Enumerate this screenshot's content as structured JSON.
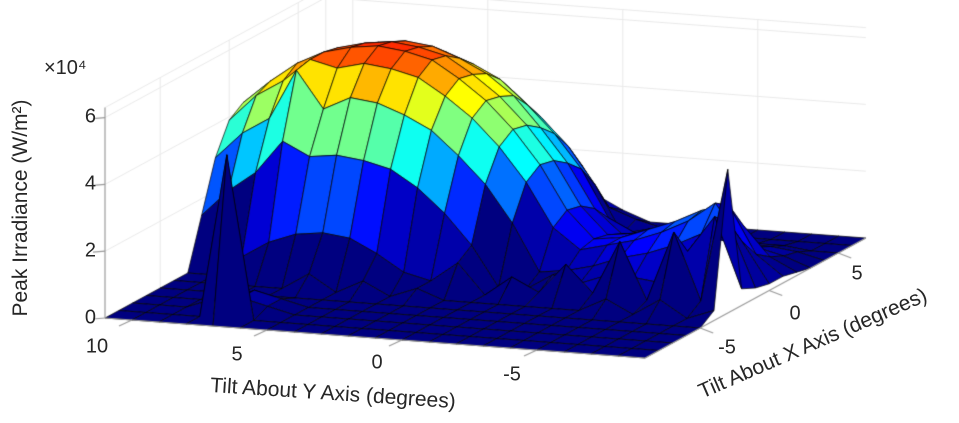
{
  "figure": {
    "kind": "matlab-3d-surface-plot",
    "background": "#ffffff"
  },
  "chart_data": {
    "type": "surface",
    "title": "",
    "xlabel": "Tilt About Y Axis (degrees)",
    "ylabel": "Tilt About X Axis (degrees)",
    "zlabel": "Peak Irradiance (W/m²)",
    "z_multiplier": "×10⁴",
    "z_unit_scale": 10000,
    "colormap": "jet",
    "clim": [
      0,
      7.2
    ],
    "zlim": [
      0,
      6.3
    ],
    "grid": true,
    "x_ticks": {
      "values": [
        10,
        5,
        0,
        -5
      ],
      "labels": [
        "10",
        "5",
        "0",
        "-5"
      ]
    },
    "y_ticks": {
      "values": [
        -5,
        0,
        5
      ],
      "labels": [
        "-5",
        "0",
        "5"
      ]
    },
    "z_ticks": {
      "values": [
        0,
        2,
        4,
        6
      ],
      "labels": [
        "0",
        "2",
        "4",
        "6"
      ]
    },
    "x": [
      -9,
      -8,
      -7,
      -6,
      -5,
      -4,
      -3,
      -2,
      -1,
      0,
      1,
      2,
      3,
      4,
      5,
      6,
      7,
      8,
      9,
      10,
      11
    ],
    "y": [
      -9,
      -8,
      -7,
      -6,
      -5,
      -4,
      -3,
      -2,
      -1,
      0,
      1,
      2,
      3,
      4,
      5,
      6,
      7
    ],
    "z_grid": [
      [
        0,
        0,
        0,
        0,
        0,
        0,
        0,
        0,
        0,
        0,
        0,
        0,
        0,
        0,
        0,
        0,
        0,
        0,
        0,
        0,
        0
      ],
      [
        0,
        0,
        0,
        0,
        0,
        0,
        0,
        0,
        0,
        0,
        0,
        0,
        0,
        0,
        0,
        0,
        4.9,
        0,
        0,
        0,
        0
      ],
      [
        0,
        0,
        0,
        0,
        0,
        0,
        0,
        0,
        0,
        0,
        0,
        0,
        0,
        0,
        0,
        0.2,
        0.4,
        0.3,
        0,
        0,
        0
      ],
      [
        0,
        0,
        0,
        0,
        0,
        0,
        0,
        0,
        0,
        0,
        0,
        0,
        0,
        0,
        0,
        0.2,
        0.4,
        0,
        0,
        0,
        0
      ],
      [
        0,
        0,
        0,
        0,
        0,
        0,
        0,
        0,
        0,
        0,
        0,
        0,
        0,
        0,
        0,
        0,
        0,
        0,
        0,
        0,
        0
      ],
      [
        0.3,
        0,
        0.5,
        0,
        0.4,
        0,
        0,
        0,
        0,
        0,
        0,
        0.3,
        0,
        0.4,
        0,
        0.5,
        0,
        0,
        0,
        0,
        0
      ],
      [
        4.3,
        0.3,
        2.3,
        0.2,
        1.9,
        0.3,
        1.1,
        0.2,
        0.6,
        0,
        0.9,
        0.3,
        0.5,
        1.0,
        1.4,
        1.5,
        1.4,
        1.1,
        0.6,
        0,
        0
      ],
      [
        0.5,
        2.6,
        1.5,
        0.5,
        0.6,
        0.6,
        0.3,
        0.5,
        0,
        0,
        1.2,
        2.1,
        2.8,
        3.3,
        3.5,
        3.6,
        3.5,
        3.9,
        2.9,
        2.3,
        1.5
      ],
      [
        0.3,
        2.2,
        1.8,
        1.4,
        1.1,
        0.9,
        0.6,
        0.4,
        0.3,
        1.7,
        2.8,
        3.6,
        4.3,
        4.7,
        5.0,
        5.1,
        4.7,
        5.8,
        4.3,
        3.8,
        3.0
      ],
      [
        0.2,
        1.4,
        2.5,
        1.9,
        1.5,
        1.2,
        1.0,
        0.8,
        1.4,
        2.7,
        3.7,
        4.5,
        5.1,
        5.6,
        5.8,
        5.9,
        5.7,
        5.9,
        5.2,
        4.7,
        3.9
      ],
      [
        0.2,
        0.8,
        2.2,
        2.0,
        1.6,
        1.3,
        1.0,
        0.9,
        1.7,
        3.0,
        4.0,
        4.8,
        5.4,
        5.9,
        6.1,
        6.2,
        6.1,
        5.9,
        5.5,
        4.9,
        4.2
      ],
      [
        0.1,
        0.5,
        1.4,
        1.5,
        1.3,
        1.1,
        0.9,
        0.8,
        1.6,
        2.9,
        3.9,
        4.7,
        5.3,
        5.8,
        6.0,
        6.1,
        6.0,
        5.8,
        5.4,
        4.9,
        4.1
      ],
      [
        0,
        0.3,
        0.5,
        0.7,
        0.8,
        0.8,
        0.7,
        0.6,
        1.3,
        2.6,
        3.6,
        4.5,
        5.1,
        5.5,
        5.8,
        5.9,
        5.8,
        5.6,
        5.2,
        4.6,
        3.9
      ],
      [
        0,
        0.2,
        0.3,
        0.3,
        0.4,
        0.4,
        0.5,
        0.4,
        0.8,
        2.2,
        3.2,
        4.0,
        4.7,
        5.1,
        5.4,
        5.5,
        5.4,
        5.2,
        4.8,
        4.2,
        3.4
      ],
      [
        0,
        0,
        0.1,
        0.1,
        0.2,
        0.2,
        0.2,
        0.3,
        0.1,
        1.5,
        2.6,
        3.4,
        4.1,
        4.5,
        4.8,
        4.9,
        4.8,
        4.6,
        4.2,
        3.6,
        2.8
      ],
      [
        0,
        0,
        0,
        0,
        0,
        0,
        0,
        0.1,
        0.3,
        0.6,
        1.8,
        2.7,
        3.3,
        3.8,
        4.1,
        4.1,
        4.1,
        3.8,
        3.4,
        2.8,
        2.0
      ],
      [
        0,
        0,
        0,
        0,
        0,
        0,
        0,
        0,
        0,
        0.3,
        0.7,
        1.7,
        2.3,
        2.8,
        3.1,
        3.2,
        3.1,
        2.9,
        2.4,
        1.8,
        1.0
      ]
    ],
    "colors": {
      "floor": "#000080",
      "peak": "#ed3408",
      "grid_line": "#e9e9e9",
      "axis_line": "#999999",
      "text": "#262626",
      "mesh_edge": "#000000"
    }
  }
}
